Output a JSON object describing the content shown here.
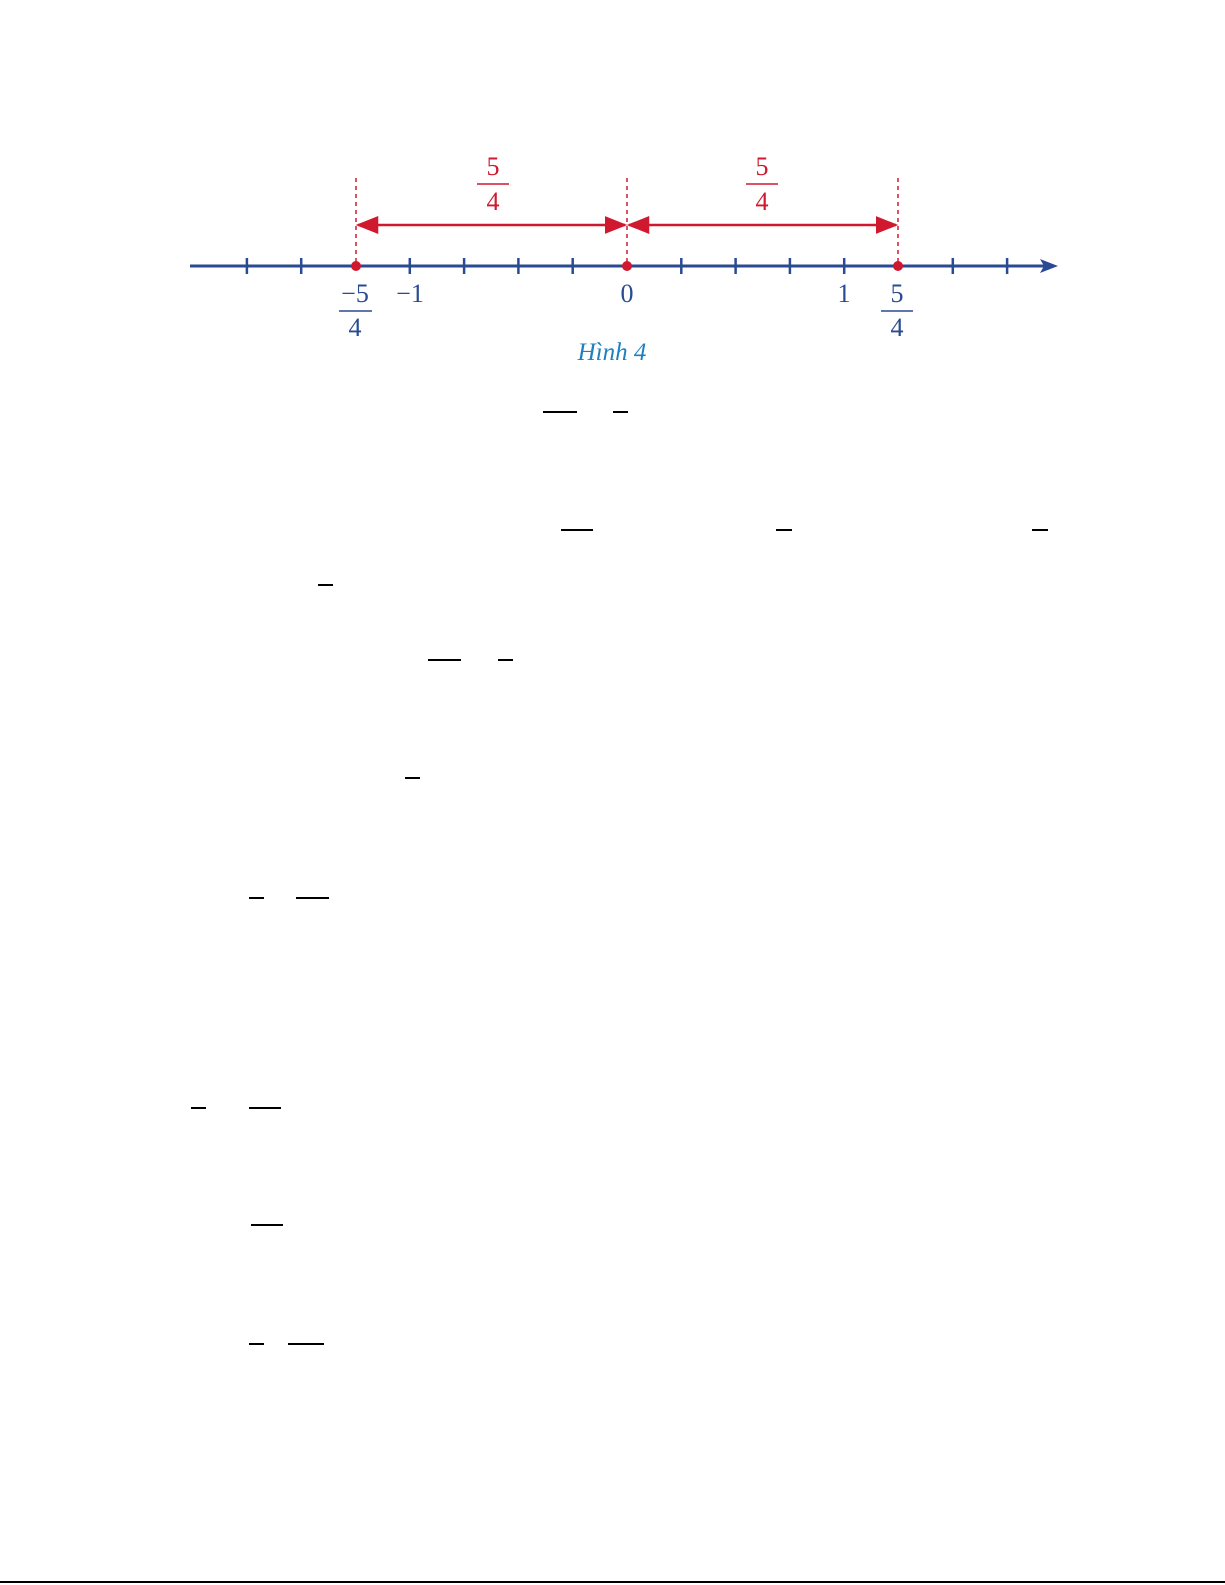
{
  "figure": {
    "top_labels": [
      {
        "num": "5",
        "den": "4"
      },
      {
        "num": "5",
        "den": "4"
      }
    ],
    "point_labels": [
      {
        "num": "−5",
        "den": "4"
      },
      {
        "num": "5",
        "den": "4"
      }
    ],
    "tick_labels": [
      "−1",
      "0",
      "1"
    ],
    "caption": "Hình 4"
  }
}
